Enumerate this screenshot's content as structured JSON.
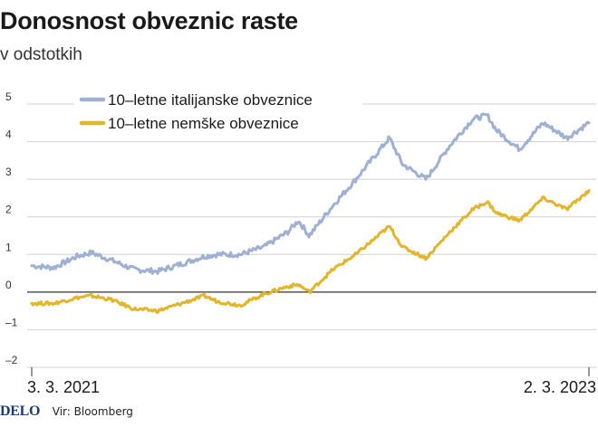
{
  "chart_data": {
    "type": "line",
    "title": "Donosnost obveznic raste",
    "subtitle": "v odstotkih",
    "x_start": "3. 3. 2021",
    "x_end": "2. 3. 2023",
    "x_tick_labels": [
      "3. 3. 2021",
      "2. 3. 2023"
    ],
    "ylim": [
      -2,
      5
    ],
    "y_ticks": [
      5,
      4,
      3,
      2,
      1,
      0,
      -1,
      -2
    ],
    "y_tick_labels": [
      "5",
      "4",
      "3",
      "2",
      "1",
      "0",
      "–1",
      "–2"
    ],
    "grid": true,
    "legend": "top-left",
    "series": [
      {
        "name": "10–letne italijanske obveznice",
        "color": "#9fb0d2",
        "x": [
          "2021-03-03",
          "2021-04-01",
          "2021-05-01",
          "2021-05-20",
          "2021-06-15",
          "2021-07-15",
          "2021-08-15",
          "2021-09-15",
          "2021-10-15",
          "2021-11-01",
          "2021-12-01",
          "2022-01-01",
          "2022-02-01",
          "2022-02-15",
          "2022-03-01",
          "2022-04-01",
          "2022-05-01",
          "2022-06-14",
          "2022-07-01",
          "2022-08-01",
          "2022-09-01",
          "2022-10-01",
          "2022-10-20",
          "2022-11-01",
          "2022-12-01",
          "2023-01-01",
          "2023-02-01",
          "2023-03-02"
        ],
        "values": [
          0.7,
          0.65,
          0.95,
          1.05,
          0.85,
          0.6,
          0.55,
          0.75,
          0.95,
          1.0,
          1.0,
          1.2,
          1.6,
          1.9,
          1.5,
          2.3,
          3.0,
          4.1,
          3.4,
          3.0,
          3.9,
          4.6,
          4.7,
          4.3,
          3.8,
          4.5,
          4.1,
          4.5
        ]
      },
      {
        "name": "10–letne nemške obveznice",
        "color": "#e2b52a",
        "x": [
          "2021-03-03",
          "2021-04-01",
          "2021-05-01",
          "2021-05-20",
          "2021-06-15",
          "2021-07-15",
          "2021-08-15",
          "2021-09-15",
          "2021-10-15",
          "2021-11-01",
          "2021-12-01",
          "2022-01-01",
          "2022-02-01",
          "2022-02-15",
          "2022-03-01",
          "2022-04-01",
          "2022-05-01",
          "2022-06-14",
          "2022-07-01",
          "2022-08-01",
          "2022-09-01",
          "2022-10-01",
          "2022-10-20",
          "2022-11-01",
          "2022-12-01",
          "2023-01-01",
          "2023-02-01",
          "2023-03-02"
        ],
        "values": [
          -0.3,
          -0.3,
          -0.15,
          -0.1,
          -0.2,
          -0.45,
          -0.5,
          -0.3,
          -0.1,
          -0.25,
          -0.35,
          -0.05,
          0.15,
          0.2,
          0.0,
          0.6,
          1.0,
          1.75,
          1.2,
          0.9,
          1.6,
          2.2,
          2.4,
          2.1,
          1.9,
          2.5,
          2.2,
          2.7
        ]
      }
    ]
  },
  "footer": {
    "logo": "DELO",
    "source": "Vir: Bloomberg"
  }
}
